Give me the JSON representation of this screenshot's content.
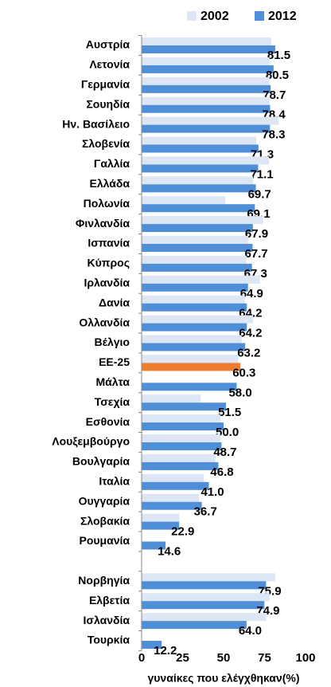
{
  "chart_data": {
    "type": "barh",
    "x_label": "γυναίκες που ελέγχθηκαν(%)",
    "categories": [
      "Αυστρία",
      "Λετονία",
      "Γερμανία",
      "Σουηδία",
      "Ην. Βασίλειο",
      "Σλοβενία",
      "Γαλλία",
      "Ελλάδα",
      "Πολωνία",
      "Φινλανδία",
      "Ισπανία",
      "Κύπρος",
      "Ιρλανδία",
      "Δανία",
      "Ολλανδία",
      "Βέλγιο",
      "ΕΕ-25",
      "Μάλτα",
      "Τσεχία",
      "Εσθονία",
      "Λουξεμβούργο",
      "Βουλγαρία",
      "Ιταλία",
      "Ουγγαρία",
      "Σλοβακία",
      "Ρουμανία",
      null,
      "Νορβηγία",
      "Ελβετία",
      "Ισλανδία",
      "Τουρκία"
    ],
    "series": [
      {
        "name": "2002",
        "color": "#dce6f5",
        "values": [
          79,
          78,
          78,
          78,
          83.5,
          70,
          77.7,
          68,
          51,
          74,
          65,
          64,
          72,
          63,
          68,
          61,
          59,
          null,
          36,
          48,
          48,
          45,
          38,
          35,
          23,
          null,
          null,
          81.5,
          78,
          76,
          null
        ]
      },
      {
        "name": "2012",
        "color": "#4f8fd8",
        "colors": [
          "#4f8fd8",
          "#4f8fd8",
          "#4f8fd8",
          "#4f8fd8",
          "#4f8fd8",
          "#4f8fd8",
          "#4f8fd8",
          "#4f8fd8",
          "#4f8fd8",
          "#4f8fd8",
          "#4f8fd8",
          "#4f8fd8",
          "#4f8fd8",
          "#4f8fd8",
          "#4f8fd8",
          "#4f8fd8",
          "#ed7d31",
          "#4f8fd8",
          "#4f8fd8",
          "#4f8fd8",
          "#4f8fd8",
          "#4f8fd8",
          "#4f8fd8",
          "#4f8fd8",
          "#4f8fd8",
          "#4f8fd8",
          "#4f8fd8",
          "#4f8fd8",
          "#4f8fd8",
          "#4f8fd8",
          "#4f8fd8"
        ],
        "values": [
          81.5,
          80.5,
          78.7,
          78.4,
          78.3,
          71.3,
          71.1,
          69.7,
          69.1,
          67.9,
          67.7,
          67.3,
          64.9,
          64.2,
          64.2,
          63.2,
          60.3,
          58,
          51.5,
          50,
          48.7,
          46.8,
          41,
          36.7,
          22.9,
          14.6,
          null,
          75.9,
          74.9,
          64,
          12.2
        ],
        "value_labels": [
          "81.5",
          "80.5",
          "78.7",
          "78.4",
          "78.3",
          "71.3",
          "71.1",
          "69.7",
          "69.1",
          "67.9",
          "67.7",
          "67.3",
          "64.9",
          "64.2",
          "64.2",
          "63.2",
          "60.3",
          "58.0",
          "51.5",
          "50.0",
          "48.7",
          "46.8",
          "41.0",
          "36.7",
          "22.9",
          "14.6",
          null,
          "75.9",
          "74.9",
          "64.0",
          "12.2"
        ]
      }
    ],
    "xlim": [
      0,
      100
    ],
    "xticks": [
      0,
      25,
      50,
      75,
      100
    ],
    "grid": false,
    "legend": "top"
  }
}
